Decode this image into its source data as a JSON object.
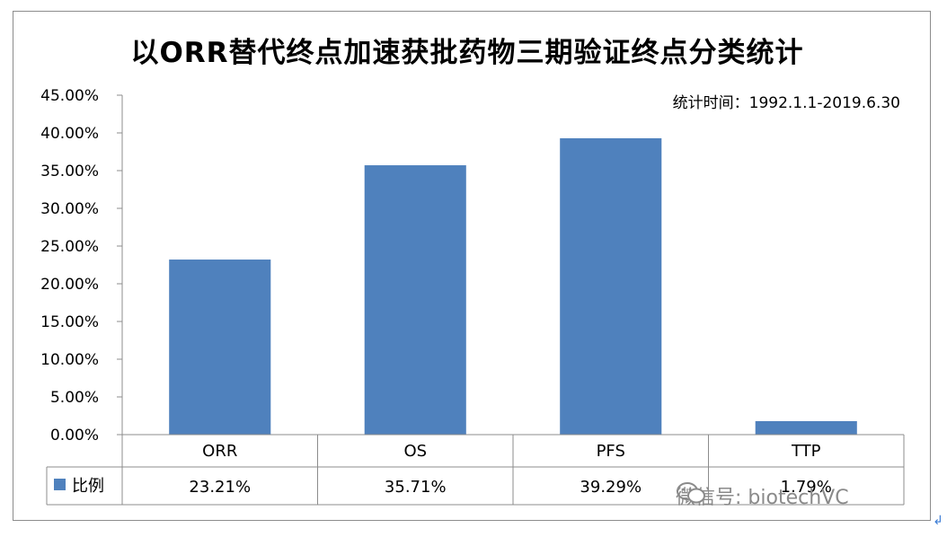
{
  "chart_data": {
    "type": "bar",
    "title": "以ORR替代终点加速获批药物三期验证终点分类统计",
    "subtitle": "统计时间：1992.1.1-2019.6.30",
    "categories": [
      "ORR",
      "OS",
      "PFS",
      "TTP"
    ],
    "series": [
      {
        "name": "比例",
        "values": [
          23.21,
          35.71,
          39.29,
          1.79
        ],
        "color": "#4f81bd"
      }
    ],
    "value_labels": [
      "23.21%",
      "35.71%",
      "39.29%",
      "1.79%"
    ],
    "ylim": [
      0,
      45
    ],
    "y_ticks": [
      "0.00%",
      "5.00%",
      "10.00%",
      "15.00%",
      "20.00%",
      "25.00%",
      "30.00%",
      "35.00%",
      "40.00%",
      "45.00%"
    ],
    "grid": false,
    "legend": "data-table"
  },
  "watermark": {
    "text": "微信号: biotechVC",
    "icon": "wechat-icon",
    "corner_mark": "↲"
  }
}
